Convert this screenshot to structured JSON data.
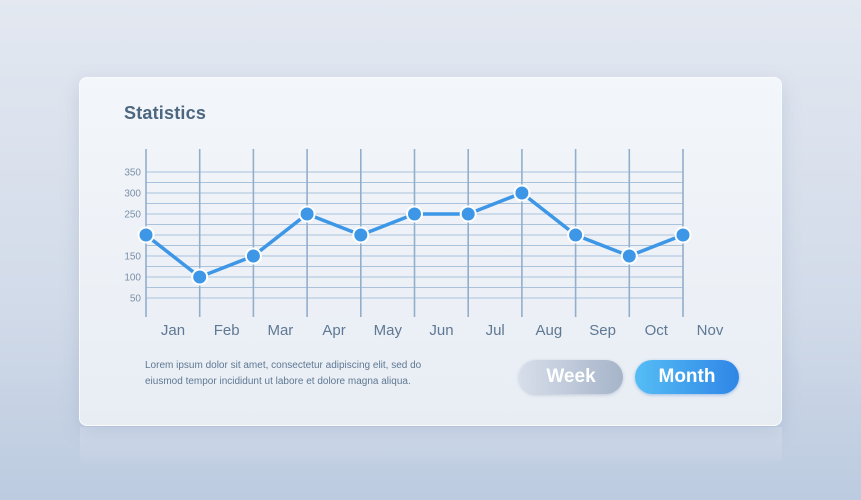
{
  "card": {
    "title": "Statistics",
    "description_lines": [
      "Lorem ipsum dolor sit amet, consectetur adipiscing elit, sed do",
      "eiusmod tempor incididunt ut labore et dolore magna aliqua."
    ]
  },
  "buttons": {
    "week": "Week",
    "month": "Month"
  },
  "colors": {
    "line": "#3d97e6",
    "point": "#3d97e6",
    "grid": "#a9c3dd",
    "month_button": "#2f86e6",
    "week_button": "#b3c0d3"
  },
  "chart_data": {
    "type": "line",
    "title": "Statistics",
    "xlabel": "",
    "ylabel": "",
    "categories": [
      "Jan",
      "Feb",
      "Mar",
      "Apr",
      "May",
      "Jun",
      "Jul",
      "Aug",
      "Sep",
      "Oct",
      "Nov"
    ],
    "series": [
      {
        "values": [
          200,
          100,
          150,
          250,
          200,
          250,
          250,
          300,
          200,
          150,
          200
        ]
      }
    ],
    "y_ticks": [
      "350",
      "300",
      "250",
      "150",
      "100",
      "50"
    ],
    "ylim": [
      0,
      350
    ],
    "grid": true,
    "legend": "none"
  }
}
